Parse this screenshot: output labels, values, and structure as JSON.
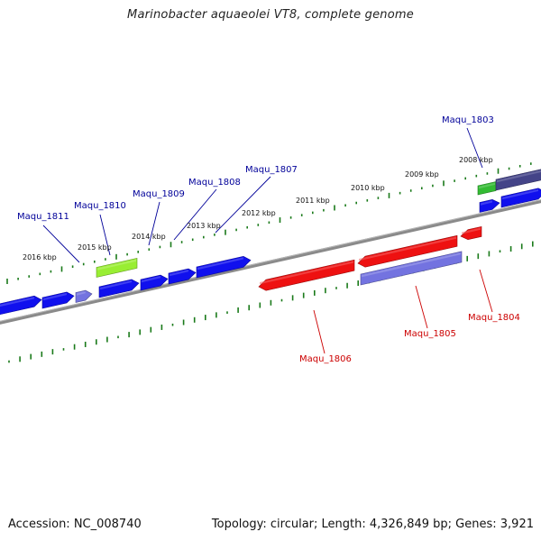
{
  "title": "Marinobacter aquaeolei VT8, complete genome",
  "footer": {
    "accession": "Accession: NC_008740",
    "summary": "Topology: circular; Length: 4,326,849 bp; Genes: 3,921"
  },
  "colors": {
    "forward_gene": "#1010ee",
    "reverse_gene": "#ee1111",
    "neighbor_forward": "#7373e0",
    "highlight_green": "#33bb33",
    "highlight_lime": "#99ee33",
    "navy_gene": "#444488",
    "forward_label": "#000099",
    "reverse_label": "#cc0000",
    "tick": "#1a7a1a",
    "backbone": "#8a8a8a"
  },
  "kbp_labels": [
    "2016 kbp",
    "2015 kbp",
    "2014 kbp",
    "2013 kbp",
    "2012 kbp",
    "2011 kbp",
    "2010 kbp",
    "2009 kbp",
    "2008 kbp"
  ],
  "forward_genes": [
    "Maqu_1811",
    "Maqu_1810",
    "Maqu_1809",
    "Maqu_1808",
    "Maqu_1807",
    "Maqu_1803"
  ],
  "reverse_genes": [
    "Maqu_1806",
    "Maqu_1805",
    "Maqu_1804"
  ]
}
